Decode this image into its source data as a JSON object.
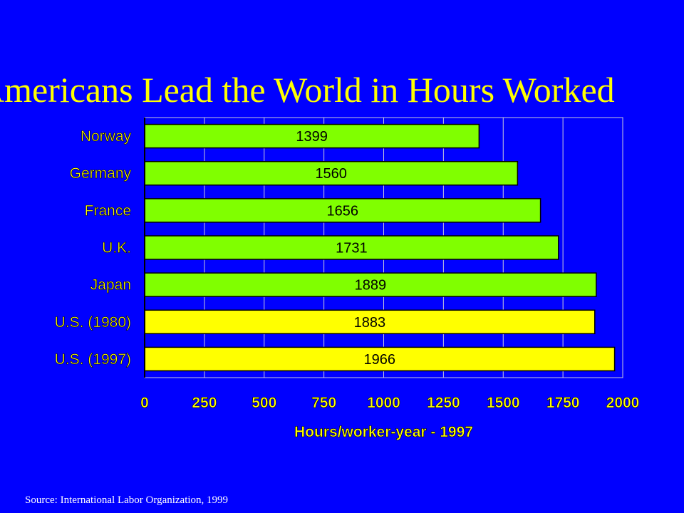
{
  "slide": {
    "title": "Americans Lead the World in Hours Worked",
    "source": "Source: International Labor Organization, 1999"
  },
  "colors": {
    "background": "#0000FF",
    "title": "#FFFF00",
    "bar_other": "#80FF00",
    "bar_us": "#FFFF00",
    "axis_text": "#FFFF00",
    "grid": "#C8C8D8"
  },
  "chart_data": {
    "type": "bar",
    "orientation": "horizontal",
    "categories": [
      "Norway",
      "Germany",
      "France",
      "U.K.",
      "Japan",
      "U.S. (1980)",
      "U.S. (1997)"
    ],
    "values": [
      1399,
      1560,
      1656,
      1731,
      1889,
      1883,
      1966
    ],
    "highlight": [
      false,
      false,
      false,
      false,
      false,
      true,
      true
    ],
    "xlabel": "Hours/worker-year - 1997",
    "ylabel": "",
    "xlim": [
      0,
      2000
    ],
    "xticks": [
      0,
      250,
      500,
      750,
      1000,
      1250,
      1500,
      1750,
      2000
    ],
    "grid": true,
    "data_labels": true
  }
}
